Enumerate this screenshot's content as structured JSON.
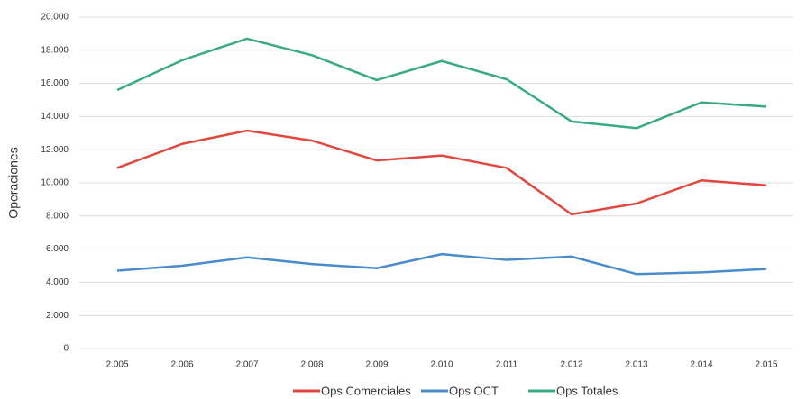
{
  "chart_data": {
    "type": "line",
    "y_label": "Operaciones",
    "categories": [
      "2.005",
      "2.006",
      "2.007",
      "2.008",
      "2.009",
      "2.010",
      "2.011",
      "2.012",
      "2.013",
      "2.014",
      "2.015"
    ],
    "series": [
      {
        "name": "Ops Comerciales",
        "color": "#e0483f",
        "values": [
          10900,
          12350,
          13150,
          12550,
          11350,
          11650,
          10900,
          8100,
          8750,
          10150,
          9850
        ]
      },
      {
        "name": "Ops OCT",
        "color": "#4a8bc9",
        "values": [
          4700,
          5000,
          5500,
          5100,
          4850,
          5700,
          5350,
          5550,
          4500,
          4600,
          4800
        ]
      },
      {
        "name": "Ops Totales",
        "color": "#3aaa85",
        "values": [
          15600,
          17400,
          18700,
          17700,
          16200,
          17350,
          16250,
          13700,
          13300,
          14850,
          14600
        ]
      }
    ],
    "ylim": [
      0,
      20000
    ],
    "yticks": [
      0,
      {
        "value": 2000,
        "label": "2.000"
      },
      {
        "value": 4000,
        "label": "4.000"
      },
      {
        "value": 6000,
        "label": "6.000"
      },
      {
        "value": 8000,
        "label": "8.000"
      },
      {
        "value": 10000,
        "label": "10.000"
      },
      {
        "value": 12000,
        "label": "12.000"
      },
      {
        "value": 14000,
        "label": "14.000"
      },
      {
        "value": 16000,
        "label": "16.000"
      },
      {
        "value": 18000,
        "label": "18.000"
      },
      {
        "value": 20000,
        "label": "20.000"
      }
    ],
    "grid": true,
    "legend": "bottom"
  }
}
